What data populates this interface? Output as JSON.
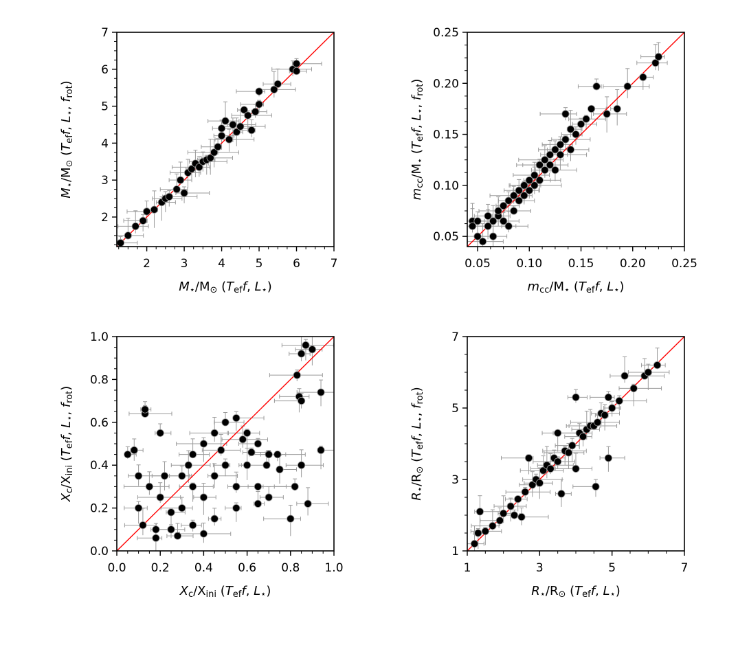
{
  "chart_data": [
    {
      "id": "mass",
      "type": "scatter",
      "xlabel": {
        "main": "M",
        "sub": "⋆",
        "rest": "/M",
        "rest_sub": "⊙",
        "args": " (T",
        "args_sub": "eff",
        "args2": ", L",
        "args2_sub": "⋆",
        "tail": ")"
      },
      "ylabel": {
        "main": "M",
        "sub": "⋆",
        "rest": "/M",
        "rest_sub": "⊙",
        "args": " (T",
        "args_sub": "eff",
        "args2": ", L",
        "args2_sub": "⋆",
        "args3": ", f",
        "args3_sub": "rot",
        "tail": ")"
      },
      "xlim": [
        1.2,
        7.0
      ],
      "ylim": [
        1.2,
        7.0
      ],
      "xticks": [
        2,
        3,
        4,
        5,
        6,
        7
      ],
      "yticks": [
        2,
        3,
        4,
        5,
        6,
        7
      ],
      "tick_labels_x": [
        "2",
        "3",
        "4",
        "5",
        "6",
        "7"
      ],
      "tick_labels_y": [
        "2",
        "3",
        "4",
        "5",
        "6",
        "7"
      ],
      "reference_line": "y = x",
      "points": [
        [
          1.3,
          1.3
        ],
        [
          1.5,
          1.5
        ],
        [
          1.7,
          1.75
        ],
        [
          1.9,
          1.9
        ],
        [
          2.0,
          2.15
        ],
        [
          2.2,
          2.2
        ],
        [
          2.4,
          2.4
        ],
        [
          2.5,
          2.5
        ],
        [
          2.6,
          2.55
        ],
        [
          2.8,
          2.75
        ],
        [
          2.9,
          3.0
        ],
        [
          3.0,
          2.65
        ],
        [
          3.1,
          3.2
        ],
        [
          3.2,
          3.3
        ],
        [
          3.3,
          3.45
        ],
        [
          3.4,
          3.35
        ],
        [
          3.5,
          3.5
        ],
        [
          3.6,
          3.55
        ],
        [
          3.7,
          3.6
        ],
        [
          3.8,
          3.75
        ],
        [
          3.9,
          3.9
        ],
        [
          4.0,
          4.2
        ],
        [
          4.0,
          4.4
        ],
        [
          4.1,
          4.6
        ],
        [
          4.2,
          4.1
        ],
        [
          4.3,
          4.5
        ],
        [
          4.4,
          4.3
        ],
        [
          4.5,
          4.45
        ],
        [
          4.6,
          4.9
        ],
        [
          4.7,
          4.75
        ],
        [
          4.8,
          4.35
        ],
        [
          4.9,
          4.85
        ],
        [
          5.0,
          5.4
        ],
        [
          5.0,
          5.05
        ],
        [
          5.5,
          5.6
        ],
        [
          5.4,
          5.45
        ],
        [
          5.9,
          6.0
        ],
        [
          6.0,
          6.15
        ],
        [
          6.0,
          5.95
        ]
      ]
    },
    {
      "id": "core",
      "type": "scatter",
      "xlabel": {
        "main": "m",
        "sub": "cc",
        "rest": "/M",
        "rest_sub": "⋆",
        "args": " (T",
        "args_sub": "eff",
        "args2": ", L",
        "args2_sub": "⋆",
        "tail": ")"
      },
      "ylabel": {
        "main": "m",
        "sub": "cc",
        "rest": "/M",
        "rest_sub": "⋆",
        "args": " (T",
        "args_sub": "eff",
        "args2": ", L",
        "args2_sub": "⋆",
        "args3": ", f",
        "args3_sub": "rot",
        "tail": ")"
      },
      "xlim": [
        0.04,
        0.25
      ],
      "ylim": [
        0.04,
        0.25
      ],
      "xticks": [
        0.05,
        0.1,
        0.15,
        0.2,
        0.25
      ],
      "yticks": [
        0.05,
        0.1,
        0.15,
        0.2,
        0.25
      ],
      "tick_labels_x": [
        "0.05",
        "0.10",
        "0.15",
        "0.20",
        "0.25"
      ],
      "tick_labels_y": [
        "0.05",
        "0.10",
        "0.15",
        "0.20",
        "0.25"
      ],
      "reference_line": "y = x",
      "points": [
        [
          0.045,
          0.065
        ],
        [
          0.045,
          0.06
        ],
        [
          0.05,
          0.05
        ],
        [
          0.05,
          0.065
        ],
        [
          0.055,
          0.045
        ],
        [
          0.06,
          0.06
        ],
        [
          0.06,
          0.07
        ],
        [
          0.065,
          0.065
        ],
        [
          0.065,
          0.05
        ],
        [
          0.07,
          0.07
        ],
        [
          0.07,
          0.075
        ],
        [
          0.075,
          0.08
        ],
        [
          0.075,
          0.065
        ],
        [
          0.08,
          0.06
        ],
        [
          0.08,
          0.085
        ],
        [
          0.085,
          0.09
        ],
        [
          0.085,
          0.075
        ],
        [
          0.09,
          0.095
        ],
        [
          0.09,
          0.085
        ],
        [
          0.095,
          0.1
        ],
        [
          0.095,
          0.09
        ],
        [
          0.1,
          0.105
        ],
        [
          0.1,
          0.095
        ],
        [
          0.105,
          0.11
        ],
        [
          0.105,
          0.1
        ],
        [
          0.11,
          0.12
        ],
        [
          0.11,
          0.105
        ],
        [
          0.115,
          0.115
        ],
        [
          0.115,
          0.125
        ],
        [
          0.12,
          0.13
        ],
        [
          0.12,
          0.12
        ],
        [
          0.125,
          0.135
        ],
        [
          0.125,
          0.115
        ],
        [
          0.13,
          0.14
        ],
        [
          0.13,
          0.13
        ],
        [
          0.135,
          0.145
        ],
        [
          0.135,
          0.17
        ],
        [
          0.14,
          0.155
        ],
        [
          0.14,
          0.135
        ],
        [
          0.145,
          0.15
        ],
        [
          0.15,
          0.16
        ],
        [
          0.155,
          0.165
        ],
        [
          0.16,
          0.175
        ],
        [
          0.165,
          0.197
        ],
        [
          0.175,
          0.17
        ],
        [
          0.185,
          0.175
        ],
        [
          0.195,
          0.197
        ],
        [
          0.21,
          0.206
        ],
        [
          0.222,
          0.22
        ],
        [
          0.225,
          0.226
        ]
      ]
    },
    {
      "id": "hydrogen",
      "type": "scatter",
      "xlabel": {
        "main": "X",
        "sub": "c",
        "rest": "/X",
        "rest_sub": "ini",
        "args": " (T",
        "args_sub": "eff",
        "args2": ", L",
        "args2_sub": "⋆",
        "tail": ")"
      },
      "ylabel": {
        "main": "X",
        "sub": "c",
        "rest": "/X",
        "rest_sub": "ini",
        "args": " (T",
        "args_sub": "eff",
        "args2": ", L",
        "args2_sub": "⋆",
        "args3": ", f",
        "args3_sub": "rot",
        "tail": ")"
      },
      "xlim": [
        0.0,
        1.0
      ],
      "ylim": [
        0.0,
        1.0
      ],
      "xticks": [
        0.0,
        0.2,
        0.4,
        0.6,
        0.8,
        1.0
      ],
      "yticks": [
        0.0,
        0.2,
        0.4,
        0.6,
        0.8,
        1.0
      ],
      "tick_labels_x": [
        "0.0",
        "0.2",
        "0.4",
        "0.6",
        "0.8",
        "1.0"
      ],
      "tick_labels_y": [
        "0.0",
        "0.2",
        "0.4",
        "0.6",
        "0.8",
        "1.0"
      ],
      "reference_line": "y = x",
      "points": [
        [
          0.05,
          0.45
        ],
        [
          0.08,
          0.47
        ],
        [
          0.13,
          0.64
        ],
        [
          0.13,
          0.66
        ],
        [
          0.2,
          0.55
        ],
        [
          0.1,
          0.35
        ],
        [
          0.15,
          0.3
        ],
        [
          0.1,
          0.2
        ],
        [
          0.12,
          0.12
        ],
        [
          0.18,
          0.1
        ],
        [
          0.2,
          0.25
        ],
        [
          0.25,
          0.18
        ],
        [
          0.3,
          0.35
        ],
        [
          0.3,
          0.2
        ],
        [
          0.35,
          0.45
        ],
        [
          0.35,
          0.3
        ],
        [
          0.4,
          0.5
        ],
        [
          0.4,
          0.25
        ],
        [
          0.45,
          0.55
        ],
        [
          0.45,
          0.35
        ],
        [
          0.5,
          0.6
        ],
        [
          0.5,
          0.4
        ],
        [
          0.55,
          0.62
        ],
        [
          0.55,
          0.3
        ],
        [
          0.6,
          0.55
        ],
        [
          0.6,
          0.4
        ],
        [
          0.65,
          0.5
        ],
        [
          0.65,
          0.3
        ],
        [
          0.7,
          0.45
        ],
        [
          0.7,
          0.25
        ],
        [
          0.75,
          0.38
        ],
        [
          0.8,
          0.15
        ],
        [
          0.82,
          0.3
        ],
        [
          0.85,
          0.4
        ],
        [
          0.83,
          0.82
        ],
        [
          0.84,
          0.72
        ],
        [
          0.85,
          0.92
        ],
        [
          0.85,
          0.7
        ],
        [
          0.87,
          0.96
        ],
        [
          0.88,
          0.22
        ],
        [
          0.9,
          0.94
        ],
        [
          0.94,
          0.74
        ],
        [
          0.94,
          0.47
        ],
        [
          0.25,
          0.1
        ],
        [
          0.35,
          0.12
        ],
        [
          0.45,
          0.15
        ],
        [
          0.55,
          0.2
        ],
        [
          0.65,
          0.22
        ],
        [
          0.28,
          0.07
        ],
        [
          0.4,
          0.08
        ],
        [
          0.18,
          0.06
        ],
        [
          0.62,
          0.46
        ],
        [
          0.48,
          0.47
        ],
        [
          0.58,
          0.52
        ],
        [
          0.33,
          0.4
        ],
        [
          0.22,
          0.35
        ],
        [
          0.69,
          0.4
        ],
        [
          0.74,
          0.45
        ]
      ]
    },
    {
      "id": "radius",
      "type": "scatter",
      "xlabel": {
        "main": "R",
        "sub": "⋆",
        "rest": "/R",
        "rest_sub": "⊙",
        "args": " (T",
        "args_sub": "eff",
        "args2": ", L",
        "args2_sub": "⋆",
        "tail": ")"
      },
      "ylabel": {
        "main": "R",
        "sub": "⋆",
        "rest": "/R",
        "rest_sub": "⊙",
        "args": " (T",
        "args_sub": "eff",
        "args2": ", L",
        "args2_sub": "⋆",
        "args3": ", f",
        "args3_sub": "rot",
        "tail": ")"
      },
      "xlim": [
        1.0,
        7.0
      ],
      "ylim": [
        1.0,
        7.0
      ],
      "xticks": [
        1,
        3,
        5,
        7
      ],
      "yticks": [
        1,
        3,
        5,
        7
      ],
      "tick_labels_x": [
        "1",
        "3",
        "5",
        "7"
      ],
      "tick_labels_y": [
        "1",
        "3",
        "5",
        "7"
      ],
      "reference_line": "y = x",
      "points": [
        [
          1.2,
          1.2
        ],
        [
          1.3,
          1.5
        ],
        [
          1.35,
          2.1
        ],
        [
          1.5,
          1.55
        ],
        [
          1.7,
          1.7
        ],
        [
          1.9,
          1.85
        ],
        [
          2.0,
          2.05
        ],
        [
          2.2,
          2.25
        ],
        [
          2.3,
          2.0
        ],
        [
          2.4,
          2.45
        ],
        [
          2.5,
          1.95
        ],
        [
          2.6,
          2.65
        ],
        [
          2.7,
          3.6
        ],
        [
          2.8,
          2.85
        ],
        [
          2.9,
          3.0
        ],
        [
          3.0,
          2.9
        ],
        [
          3.1,
          3.25
        ],
        [
          3.2,
          3.4
        ],
        [
          3.3,
          3.3
        ],
        [
          3.4,
          3.6
        ],
        [
          3.5,
          3.5
        ],
        [
          3.6,
          2.6
        ],
        [
          3.7,
          3.8
        ],
        [
          3.8,
          3.75
        ],
        [
          3.9,
          3.95
        ],
        [
          4.0,
          3.3
        ],
        [
          4.1,
          4.3
        ],
        [
          4.2,
          4.2
        ],
        [
          4.3,
          4.4
        ],
        [
          4.4,
          4.5
        ],
        [
          4.5,
          4.5
        ],
        [
          4.55,
          2.8
        ],
        [
          4.6,
          4.6
        ],
        [
          4.7,
          4.85
        ],
        [
          4.8,
          4.8
        ],
        [
          4.9,
          3.6
        ],
        [
          5.0,
          5.0
        ],
        [
          4.9,
          5.3
        ],
        [
          5.2,
          5.2
        ],
        [
          5.35,
          5.9
        ],
        [
          5.6,
          5.55
        ],
        [
          5.9,
          5.9
        ],
        [
          6.0,
          6.0
        ],
        [
          6.25,
          6.2
        ],
        [
          4.0,
          5.3
        ],
        [
          3.5,
          4.3
        ]
      ]
    }
  ],
  "colors": {
    "points": "#000000",
    "point_edge": "#9a9a9a",
    "errorbar": "#9a9a9a",
    "reference_line": "#ff0000"
  }
}
